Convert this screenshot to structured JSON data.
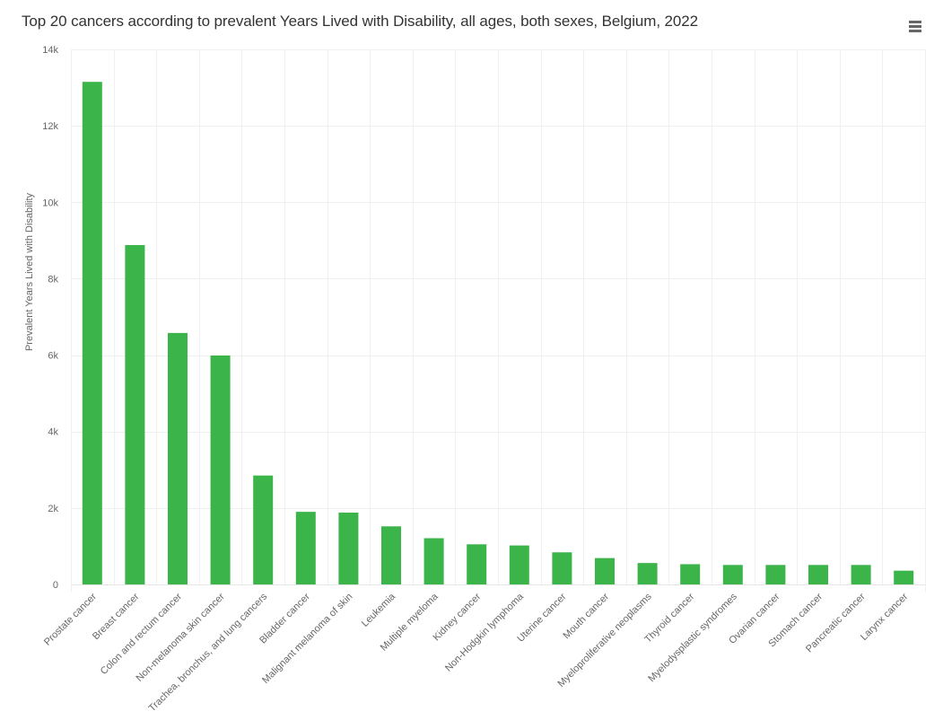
{
  "chart_data": {
    "type": "bar",
    "title": "Top 20 cancers according to prevalent Years Lived with Disability, all ages, both sexes, Belgium, 2022",
    "xlabel": "",
    "ylabel": "Prevalent Years Lived with Disability",
    "ylim": [
      0,
      14000
    ],
    "yticks": [
      0,
      2000,
      4000,
      6000,
      8000,
      10000,
      12000,
      14000
    ],
    "ytick_labels": [
      "0",
      "2k",
      "4k",
      "6k",
      "8k",
      "10k",
      "12k",
      "14k"
    ],
    "grid": true,
    "legend": "none",
    "bar_color": "#3bb54a",
    "categories": [
      "Prostate cancer",
      "Breast cancer",
      "Colon and rectum cancer",
      "Non-melanoma skin cancer",
      "Trachea, bronchus, and lung cancers",
      "Bladder cancer",
      "Malignant melanoma of skin",
      "Leukemia",
      "Multiple myeloma",
      "Kidney cancer",
      "Non-Hodgkin lymphoma",
      "Uterine cancer",
      "Mouth cancer",
      "Myeloproliferative neoplasms",
      "Thyroid cancer",
      "Myelodysplastic syndromes",
      "Ovarian cancer",
      "Stomach cancer",
      "Pancreatic cancer",
      "Larynx cancer"
    ],
    "values": [
      13150,
      8880,
      6580,
      5990,
      2850,
      1900,
      1880,
      1520,
      1210,
      1050,
      1020,
      840,
      690,
      560,
      530,
      510,
      510,
      510,
      510,
      360
    ]
  },
  "menu": {
    "icon": "hamburger-menu-icon"
  }
}
